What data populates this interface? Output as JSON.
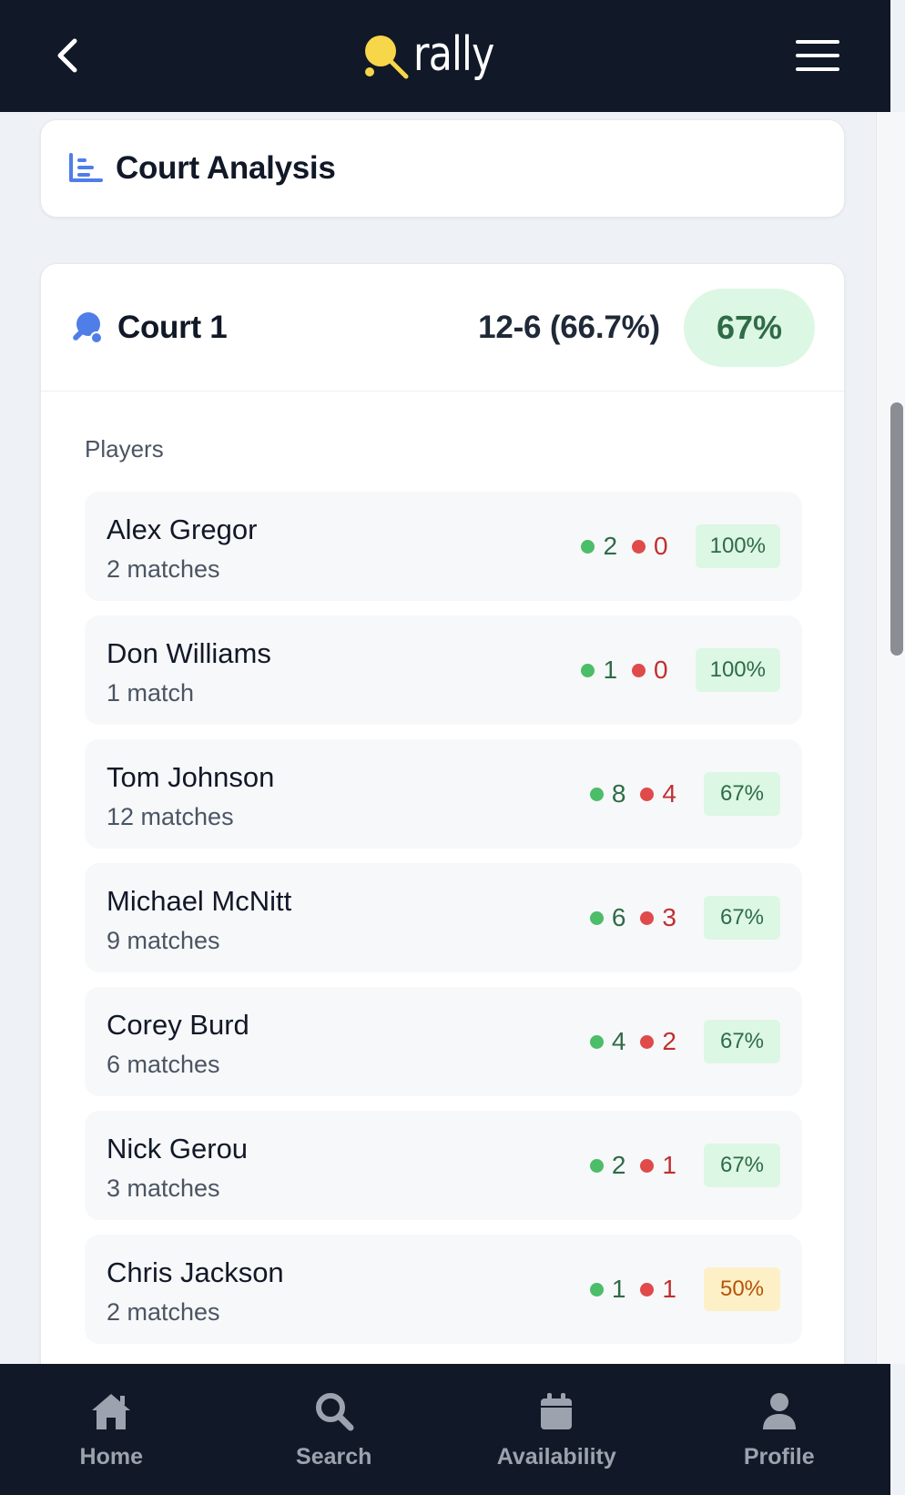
{
  "header": {
    "logo_text": "rally"
  },
  "analysis": {
    "title": "Court Analysis"
  },
  "court": {
    "name": "Court 1",
    "record": "12-6 (66.7%)",
    "badge": "67%",
    "players_label": "Players",
    "players": [
      {
        "name": "Alex Gregor",
        "matches": "2 matches",
        "wins": "2",
        "losses": "0",
        "pct": "100%",
        "tone": "green"
      },
      {
        "name": "Don Williams",
        "matches": "1 match",
        "wins": "1",
        "losses": "0",
        "pct": "100%",
        "tone": "green"
      },
      {
        "name": "Tom Johnson",
        "matches": "12 matches",
        "wins": "8",
        "losses": "4",
        "pct": "67%",
        "tone": "green"
      },
      {
        "name": "Michael McNitt",
        "matches": "9 matches",
        "wins": "6",
        "losses": "3",
        "pct": "67%",
        "tone": "green"
      },
      {
        "name": "Corey Burd",
        "matches": "6 matches",
        "wins": "4",
        "losses": "2",
        "pct": "67%",
        "tone": "green"
      },
      {
        "name": "Nick Gerou",
        "matches": "3 matches",
        "wins": "2",
        "losses": "1",
        "pct": "67%",
        "tone": "green"
      },
      {
        "name": "Chris Jackson",
        "matches": "2 matches",
        "wins": "1",
        "losses": "1",
        "pct": "50%",
        "tone": "yellow"
      }
    ]
  },
  "nav": {
    "items": [
      {
        "label": "Home",
        "icon": "home-icon"
      },
      {
        "label": "Search",
        "icon": "search-icon"
      },
      {
        "label": "Availability",
        "icon": "calendar-icon"
      },
      {
        "label": "Profile",
        "icon": "user-icon"
      }
    ]
  },
  "colors": {
    "header_bg": "#111827",
    "accent_yellow": "#f7d64a",
    "win_green": "#4cbd68",
    "loss_red": "#e04a4a",
    "icon_blue": "#3b82f6"
  }
}
